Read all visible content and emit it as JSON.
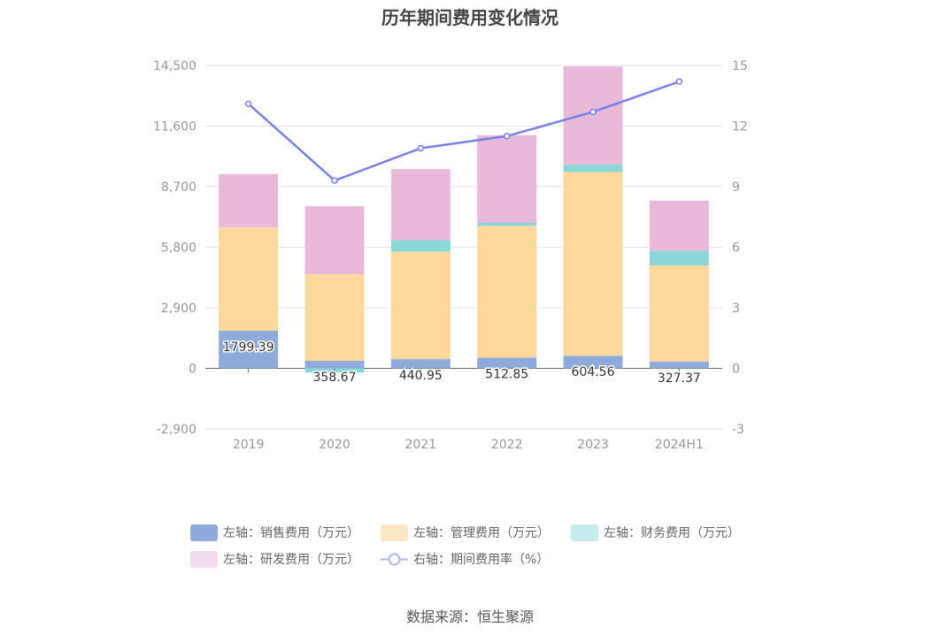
{
  "chart_data": {
    "type": "bar",
    "stacked": true,
    "title": "历年期间费用变化情况",
    "categories": [
      "2019",
      "2020",
      "2021",
      "2022",
      "2023",
      "2024H1"
    ],
    "series": [
      {
        "name": "左轴：销售费用（万元）",
        "axis": "left",
        "values": [
          1799.39,
          358.67,
          440.95,
          512.85,
          604.56,
          327.37
        ],
        "color": "#8eabdb"
      },
      {
        "name": "左轴：管理费用（万元）",
        "axis": "left",
        "values": [
          4950,
          4150,
          5150,
          6300,
          8800,
          4600
        ],
        "color": "#fed89c"
      },
      {
        "name": "左轴：财务费用（万元）",
        "axis": "left",
        "values": [
          0,
          -200,
          550,
          150,
          350,
          700
        ],
        "color": "#8ad6d8"
      },
      {
        "name": "左轴：研发费用（万元）",
        "axis": "left",
        "values": [
          2550,
          3250,
          3400,
          4200,
          4700,
          2400
        ],
        "color": "#e8b9d9"
      },
      {
        "name": "右轴：期间费用率（%）",
        "axis": "right",
        "type": "line",
        "values": [
          13.1,
          9.3,
          10.9,
          11.5,
          12.7,
          14.2
        ],
        "color": "#7b7fec"
      }
    ],
    "data_labels": [
      "1799.39",
      "358.67",
      "440.95",
      "512.85",
      "604.56",
      "327.37"
    ],
    "y_left": {
      "ticks": [
        "14,500",
        "11,600",
        "8,700",
        "5,800",
        "2,900",
        "0",
        "-2,900"
      ],
      "range": [
        -2900,
        14500
      ]
    },
    "y_right": {
      "ticks": [
        "15",
        "12",
        "9",
        "6",
        "3",
        "0",
        "-3"
      ],
      "range": [
        -3,
        15
      ]
    },
    "grid": true,
    "legend_position": "bottom"
  },
  "legend_items": [
    {
      "label": "左轴：销售费用（万元）",
      "color": "#8eabdb",
      "kind": "box"
    },
    {
      "label": "左轴：管理费用（万元）",
      "color": "#fde8c5",
      "kind": "box"
    },
    {
      "label": "左轴：财务费用（万元）",
      "color": "#c4ecec",
      "kind": "box"
    },
    {
      "label": "左轴：研发费用（万元）",
      "color": "#f2dcec",
      "kind": "box"
    },
    {
      "label": "右轴：期间费用率（%）",
      "color": "#b3b5f5",
      "kind": "line"
    }
  ],
  "source_text": "数据来源：恒生聚源"
}
